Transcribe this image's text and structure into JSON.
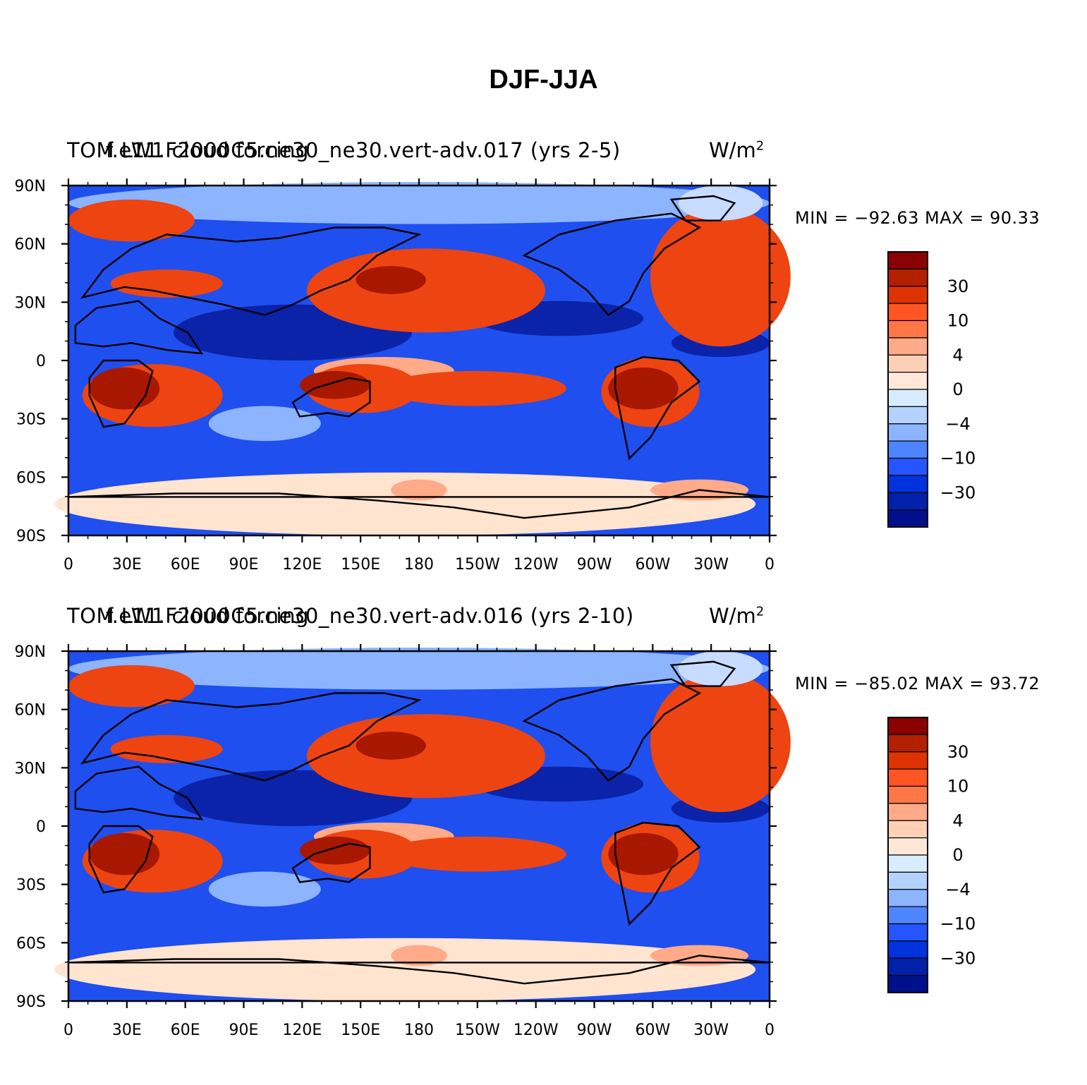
{
  "figure_title": "DJF-JJA",
  "panels": [
    {
      "variable_label": "TOM LW1 cloud forcing",
      "case_label": "f.e11.F2000C5.ne30_ne30.vert-adv.017 (yrs 2-5)",
      "units": "W/m",
      "units_sup": "2",
      "min_max_text": "MIN = −92.63  MAX =   90.33",
      "min": -92.63,
      "max": 90.33
    },
    {
      "variable_label": "TOM LW1 cloud forcing",
      "case_label": "f.e11.F2000C5.ne30_ne30.vert-adv.016 (yrs 2-10)",
      "units": "W/m",
      "units_sup": "2",
      "min_max_text": "MIN = −85.02  MAX =   93.72",
      "min": -85.02,
      "max": 93.72
    }
  ],
  "axes": {
    "lat_labels": [
      "90N",
      "60N",
      "30N",
      "0",
      "30S",
      "60S",
      "90S"
    ],
    "lon_labels": [
      "0",
      "30E",
      "60E",
      "90E",
      "120E",
      "150E",
      "180",
      "150W",
      "120W",
      "90W",
      "60W",
      "30W",
      "0"
    ]
  },
  "colorbar": {
    "colors": [
      "#8b0000",
      "#b22000",
      "#dd3300",
      "#ff5522",
      "#ff7744",
      "#ffaa88",
      "#ffd0b5",
      "#ffe8d8",
      "#d8ecff",
      "#b4d2ff",
      "#8cb4ff",
      "#4d85ff",
      "#2455ff",
      "#0033dd",
      "#0022aa",
      "#00108a"
    ],
    "labels": [
      "30",
      "10",
      "4",
      "0",
      "−4",
      "−10",
      "−30"
    ]
  },
  "map_colors": {
    "ocean_blue": "#1f4fee",
    "deep_blue": "#0a23a8",
    "light_blue": "#8cb4ff",
    "pale_blue": "#c8dcff",
    "red": "#ee4411",
    "dark_red": "#a81800",
    "salmon": "#ffaa88",
    "cream": "#ffe4d0"
  }
}
